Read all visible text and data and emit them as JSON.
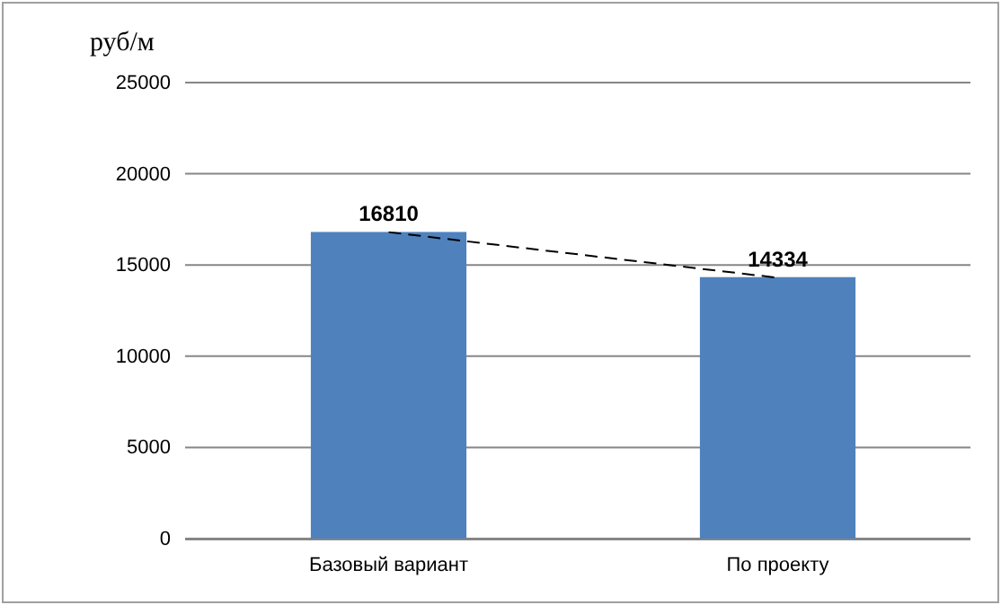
{
  "chart_data": {
    "type": "bar",
    "ylabel": "руб/м",
    "categories": [
      "Базовый вариант",
      "По проекту"
    ],
    "series": [
      {
        "color": "#4f81bd",
        "values": [
          16810,
          14334
        ],
        "value_labels": [
          "16810",
          "14334"
        ]
      },
      {
        "type": "line",
        "color": "#000000",
        "values": [
          16800,
          14300
        ],
        "line_style": "dashed",
        "marker": "none"
      }
    ],
    "ylim": [
      0,
      25000
    ],
    "yticks": [
      0,
      5000,
      10000,
      15000,
      20000,
      25000
    ],
    "grid": "y"
  }
}
